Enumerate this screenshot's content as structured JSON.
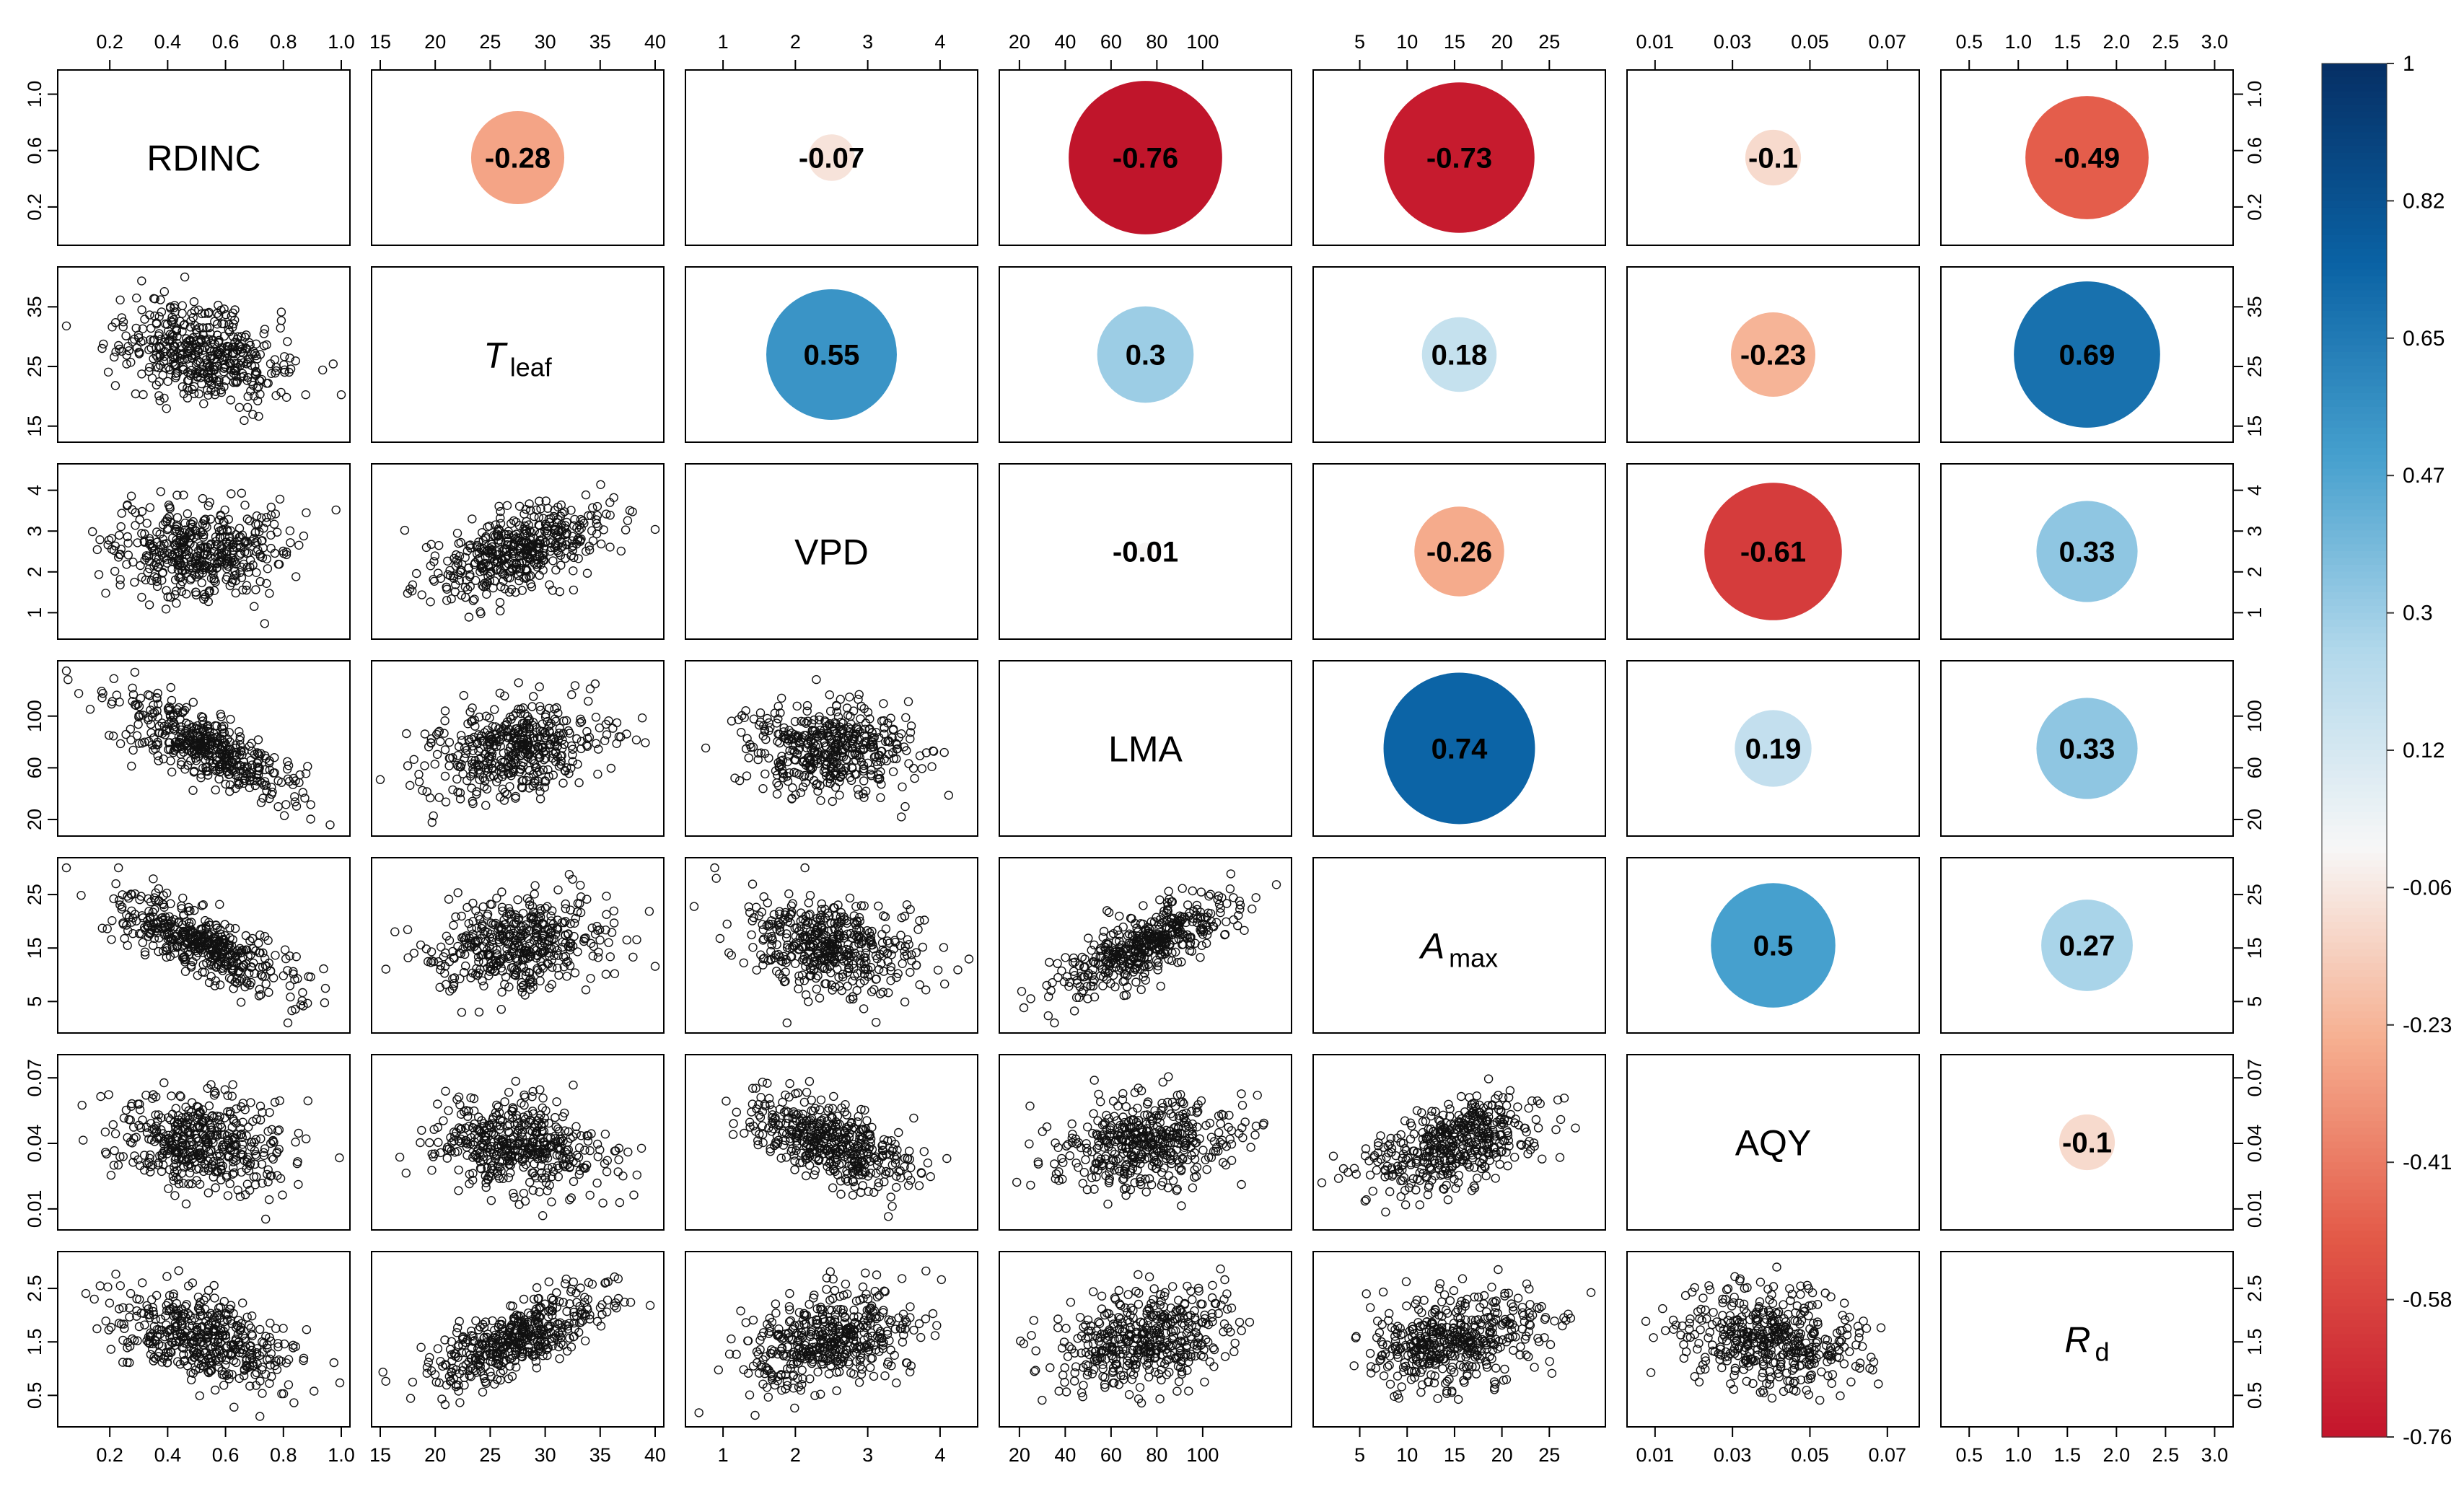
{
  "chart_data": {
    "type": "correlation-matrix",
    "title": "",
    "variables": [
      {
        "name": "RDINC",
        "main": "RDINC",
        "sub": "",
        "italic": false,
        "ticks": [
          "0.2",
          "0.4",
          "0.6",
          "0.8",
          "1.0"
        ],
        "range": [
          0.05,
          1.0
        ],
        "side_ticks": [
          "0.2",
          "0.6",
          "1.0"
        ],
        "side_range": [
          0,
          1.1
        ]
      },
      {
        "name": "Tleaf",
        "main": "T",
        "sub": "leaf",
        "italic": true,
        "ticks": [
          "15",
          "20",
          "25",
          "30",
          "35",
          "40"
        ],
        "range": [
          15,
          40
        ],
        "side_ticks": [
          "15",
          "25",
          "35"
        ],
        "side_range": [
          14,
          40
        ]
      },
      {
        "name": "VPD",
        "main": "VPD",
        "sub": "",
        "italic": false,
        "ticks": [
          "1",
          "2",
          "3",
          "4"
        ],
        "range": [
          0.6,
          4.4
        ],
        "side_ticks": [
          "1",
          "2",
          "3",
          "4"
        ],
        "side_range": [
          0.6,
          4.4
        ]
      },
      {
        "name": "LMA",
        "main": "LMA",
        "sub": "",
        "italic": false,
        "ticks": [
          "20",
          "40",
          "60",
          "80",
          "100"
        ],
        "range": [
          15,
          135
        ],
        "side_ticks": [
          "20",
          "60",
          "100"
        ],
        "side_range": [
          15,
          135
        ]
      },
      {
        "name": "Amax",
        "main": "A",
        "sub": "max",
        "italic": true,
        "ticks": [
          "5",
          "10",
          "15",
          "20",
          "25"
        ],
        "range": [
          1,
          30
        ],
        "side_ticks": [
          "5",
          "15",
          "25"
        ],
        "side_range": [
          1,
          30
        ]
      },
      {
        "name": "AQY",
        "main": "AQY",
        "sub": "",
        "italic": false,
        "ticks": [
          "0.01",
          "0.03",
          "0.05",
          "0.07"
        ],
        "range": [
          0.005,
          0.076
        ],
        "side_ticks": [
          "0.01",
          "0.04",
          "0.07"
        ],
        "side_range": [
          0.005,
          0.076
        ]
      },
      {
        "name": "Rd",
        "main": "R",
        "sub": "d",
        "italic": true,
        "ticks": [
          "0.5",
          "1.0",
          "1.5",
          "2.0",
          "2.5",
          "3.0"
        ],
        "range": [
          0.3,
          3.1
        ],
        "side_ticks": [
          "0.5",
          "1.5",
          "2.5"
        ],
        "side_range": [
          0.1,
          3.0
        ]
      }
    ],
    "correlations": [
      {
        "row": 0,
        "col": 1,
        "value": -0.28,
        "label": "-0.28"
      },
      {
        "row": 0,
        "col": 2,
        "value": -0.07,
        "label": "-0.07"
      },
      {
        "row": 0,
        "col": 3,
        "value": -0.76,
        "label": "-0.76"
      },
      {
        "row": 0,
        "col": 4,
        "value": -0.73,
        "label": "-0.73"
      },
      {
        "row": 0,
        "col": 5,
        "value": -0.1,
        "label": "-0.1"
      },
      {
        "row": 0,
        "col": 6,
        "value": -0.49,
        "label": "-0.49"
      },
      {
        "row": 1,
        "col": 2,
        "value": 0.55,
        "label": "0.55"
      },
      {
        "row": 1,
        "col": 3,
        "value": 0.3,
        "label": "0.3"
      },
      {
        "row": 1,
        "col": 4,
        "value": 0.18,
        "label": "0.18"
      },
      {
        "row": 1,
        "col": 5,
        "value": -0.23,
        "label": "-0.23"
      },
      {
        "row": 1,
        "col": 6,
        "value": 0.69,
        "label": "0.69"
      },
      {
        "row": 2,
        "col": 3,
        "value": -0.01,
        "label": "-0.01"
      },
      {
        "row": 2,
        "col": 4,
        "value": -0.26,
        "label": "-0.26"
      },
      {
        "row": 2,
        "col": 5,
        "value": -0.61,
        "label": "-0.61"
      },
      {
        "row": 2,
        "col": 6,
        "value": 0.33,
        "label": "0.33"
      },
      {
        "row": 3,
        "col": 4,
        "value": 0.74,
        "label": "0.74"
      },
      {
        "row": 3,
        "col": 5,
        "value": 0.19,
        "label": "0.19"
      },
      {
        "row": 3,
        "col": 6,
        "value": 0.33,
        "label": "0.33"
      },
      {
        "row": 4,
        "col": 5,
        "value": 0.5,
        "label": "0.5"
      },
      {
        "row": 4,
        "col": 6,
        "value": 0.27,
        "label": "0.27"
      },
      {
        "row": 5,
        "col": 6,
        "value": -0.1,
        "label": "-0.1"
      }
    ],
    "colorbar": {
      "ticks": [
        "1",
        "0.82",
        "0.65",
        "0.47",
        "0.3",
        "0.12",
        "-0.06",
        "-0.23",
        "-0.41",
        "-0.58",
        "-0.76"
      ],
      "range": [
        -0.76,
        1
      ],
      "colors": {
        "strong_negative": "#c8102e",
        "negative": "#e5533d",
        "weak_negative": "#f7c6a9",
        "neutral": "#f7f7f7",
        "weak_positive": "#b9dcec",
        "positive": "#2e9ccd",
        "strong_positive": "#09467f"
      }
    },
    "scatter_points_per_panel": 450,
    "lower_triangle": "scatterplots of pairwise observations (simulated to match reported correlation)"
  }
}
